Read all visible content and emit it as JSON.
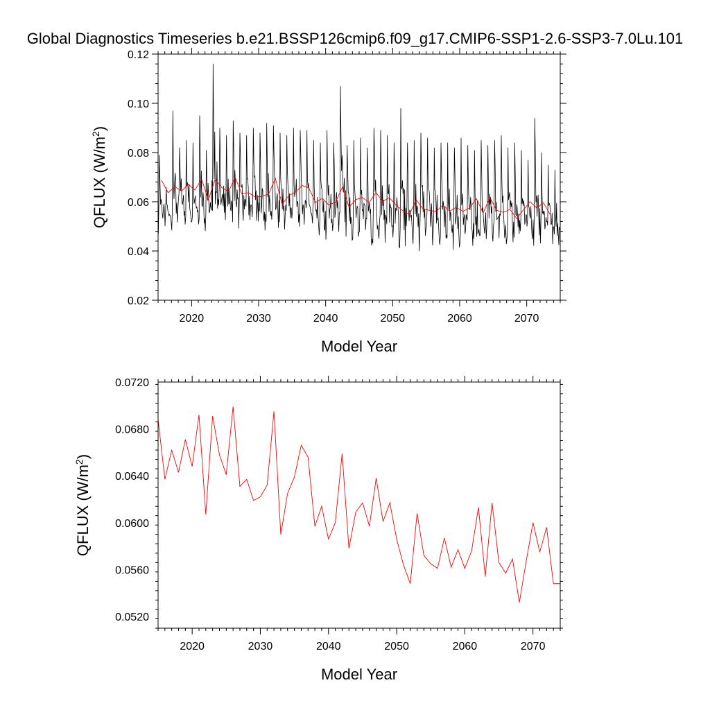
{
  "figure": {
    "title": "Global Diagnostics Timeseries b.e21.BSSP126cmip6.f09_g17.CMIP6-SSP1-2.6-SSP3-7.0Lu.101"
  },
  "chart_data": [
    {
      "type": "line",
      "xlabel": "Model Year",
      "ylabel": "QFLUX (W/m",
      "ylabel_sup": "2",
      "ylabel_close": ")",
      "xlim": [
        2015,
        2075
      ],
      "ylim": [
        0.02,
        0.12
      ],
      "x_ticks": [
        2020,
        2030,
        2040,
        2050,
        2060,
        2070
      ],
      "x_tick_labels": [
        "2020",
        "2030",
        "2040",
        "2050",
        "2060",
        "2070"
      ],
      "y_ticks": [
        0.02,
        0.04,
        0.06,
        0.08,
        0.1,
        0.12
      ],
      "y_tick_labels": [
        "0.02",
        "0.04",
        "0.06",
        "0.08",
        "0.10",
        "0.12"
      ],
      "grid": false,
      "series": [
        {
          "color": "#000000",
          "x_start": 2015.04,
          "x_step": 0.0833333,
          "annual_peaks": [
            0.079,
            0.066,
            0.097,
            0.082,
            0.085,
            0.084,
            0.095,
            0.081,
            0.116,
            0.09,
            0.087,
            0.093,
            0.088,
            0.087,
            0.09,
            0.088,
            0.092,
            0.091,
            0.088,
            0.087,
            0.09,
            0.089,
            0.089,
            0.085,
            0.084,
            0.089,
            0.084,
            0.107,
            0.083,
            0.085,
            0.086,
            0.082,
            0.09,
            0.089,
            0.087,
            0.084,
            0.098,
            0.084,
            0.085,
            0.088,
            0.086,
            0.082,
            0.084,
            0.084,
            0.082,
            0.086,
            0.083,
            0.081,
            0.085,
            0.083,
            0.085,
            0.087,
            0.082,
            0.084,
            0.081,
            0.077,
            0.094,
            0.08,
            0.075,
            0.073
          ],
          "annual_troughs": [
            0.047,
            0.049,
            0.046,
            0.05,
            0.049,
            0.05,
            0.048,
            0.047,
            0.046,
            0.048,
            0.049,
            0.047,
            0.048,
            0.047,
            0.046,
            0.045,
            0.046,
            0.045,
            0.046,
            0.047,
            0.046,
            0.045,
            0.046,
            0.045,
            0.043,
            0.042,
            0.042,
            0.042,
            0.041,
            0.041,
            0.042,
            0.04,
            0.041,
            0.041,
            0.039,
            0.04,
            0.039,
            0.038,
            0.039,
            0.04,
            0.038,
            0.04,
            0.038,
            0.039,
            0.04,
            0.037,
            0.04,
            0.038,
            0.039,
            0.039,
            0.04,
            0.041,
            0.04,
            0.04,
            0.041,
            0.04,
            0.04,
            0.041,
            0.04,
            0.038
          ]
        },
        {
          "color": "#ff0000",
          "x": [
            2015.5,
            2016.5,
            2017.5,
            2018.5,
            2019.5,
            2020.5,
            2021.5,
            2022.5,
            2023.5,
            2024.5,
            2025.5,
            2026.5,
            2027.5,
            2028.5,
            2029.5,
            2030.5,
            2031.5,
            2032.5,
            2033.5,
            2034.5,
            2035.5,
            2036.5,
            2037.5,
            2038.5,
            2039.5,
            2040.5,
            2041.5,
            2042.5,
            2043.5,
            2044.5,
            2045.5,
            2046.5,
            2047.5,
            2048.5,
            2049.5,
            2050.5,
            2051.5,
            2052.5,
            2053.5,
            2054.5,
            2055.5,
            2056.5,
            2057.5,
            2058.5,
            2059.5,
            2060.5,
            2061.5,
            2062.5,
            2063.5,
            2064.5,
            2065.5,
            2066.5,
            2067.5,
            2068.5,
            2069.5,
            2070.5,
            2071.5,
            2072.5,
            2073.5
          ],
          "values": [
            0.0688,
            0.0637,
            0.0662,
            0.0643,
            0.0671,
            0.0648,
            0.0692,
            0.0607,
            0.0691,
            0.0658,
            0.0641,
            0.0699,
            0.0631,
            0.0637,
            0.0619,
            0.0622,
            0.0632,
            0.0695,
            0.059,
            0.0625,
            0.0639,
            0.0666,
            0.0656,
            0.0597,
            0.0614,
            0.0586,
            0.06,
            0.0659,
            0.0578,
            0.0609,
            0.0617,
            0.0597,
            0.0638,
            0.0601,
            0.0617,
            0.0586,
            0.0564,
            0.0548,
            0.0608,
            0.0572,
            0.0565,
            0.0561,
            0.0587,
            0.0562,
            0.0577,
            0.0561,
            0.0576,
            0.0613,
            0.0554,
            0.0617,
            0.0566,
            0.0557,
            0.0569,
            0.0532,
            0.0567,
            0.06,
            0.0575,
            0.0596,
            0.0548
          ]
        }
      ]
    },
    {
      "type": "line",
      "xlabel": "Model Year",
      "ylabel": "QFLUX (W/m",
      "ylabel_sup": "2",
      "ylabel_close": ")",
      "xlim": [
        2015,
        2074
      ],
      "ylim": [
        0.051,
        0.072
      ],
      "x_ticks": [
        2020,
        2030,
        2040,
        2050,
        2060,
        2070
      ],
      "x_tick_labels": [
        "2020",
        "2030",
        "2040",
        "2050",
        "2060",
        "2070"
      ],
      "y_ticks": [
        0.052,
        0.056,
        0.06,
        0.064,
        0.068,
        0.072
      ],
      "y_tick_labels": [
        "0.0520",
        "0.0560",
        "0.0600",
        "0.0640",
        "0.0680",
        "0.0720"
      ],
      "grid": false,
      "series": [
        {
          "color": "#ff0000",
          "x": [
            2015.0,
            2016.0,
            2017.0,
            2018.0,
            2019.0,
            2020.0,
            2021.0,
            2022.0,
            2023.0,
            2024.0,
            2025.0,
            2026.0,
            2027.0,
            2028.0,
            2029.0,
            2030.0,
            2031.0,
            2032.0,
            2033.0,
            2034.0,
            2035.0,
            2036.0,
            2037.0,
            2038.0,
            2039.0,
            2040.0,
            2041.0,
            2042.0,
            2043.0,
            2044.0,
            2045.0,
            2046.0,
            2047.0,
            2048.0,
            2049.0,
            2050.0,
            2051.0,
            2052.0,
            2053.0,
            2054.0,
            2055.0,
            2056.0,
            2057.0,
            2058.0,
            2059.0,
            2060.0,
            2061.0,
            2062.0,
            2063.0,
            2064.0,
            2065.0,
            2066.0,
            2067.0,
            2068.0,
            2069.0,
            2070.0,
            2071.0,
            2072.0,
            2073.0,
            2074.0
          ],
          "values": [
            0.0688,
            0.0637,
            0.0662,
            0.0643,
            0.0671,
            0.0648,
            0.0692,
            0.0607,
            0.0691,
            0.0658,
            0.0641,
            0.0699,
            0.0631,
            0.0637,
            0.0619,
            0.0622,
            0.0632,
            0.0695,
            0.059,
            0.0625,
            0.0639,
            0.0666,
            0.0656,
            0.0597,
            0.0614,
            0.0586,
            0.06,
            0.0659,
            0.0578,
            0.0609,
            0.0617,
            0.0597,
            0.0638,
            0.0601,
            0.0617,
            0.0586,
            0.0564,
            0.0548,
            0.0608,
            0.0572,
            0.0565,
            0.0561,
            0.0587,
            0.0562,
            0.0577,
            0.0561,
            0.0576,
            0.0613,
            0.0554,
            0.0617,
            0.0566,
            0.0557,
            0.0569,
            0.0532,
            0.0567,
            0.06,
            0.0575,
            0.0596,
            0.0548,
            0.0548
          ]
        }
      ]
    }
  ]
}
